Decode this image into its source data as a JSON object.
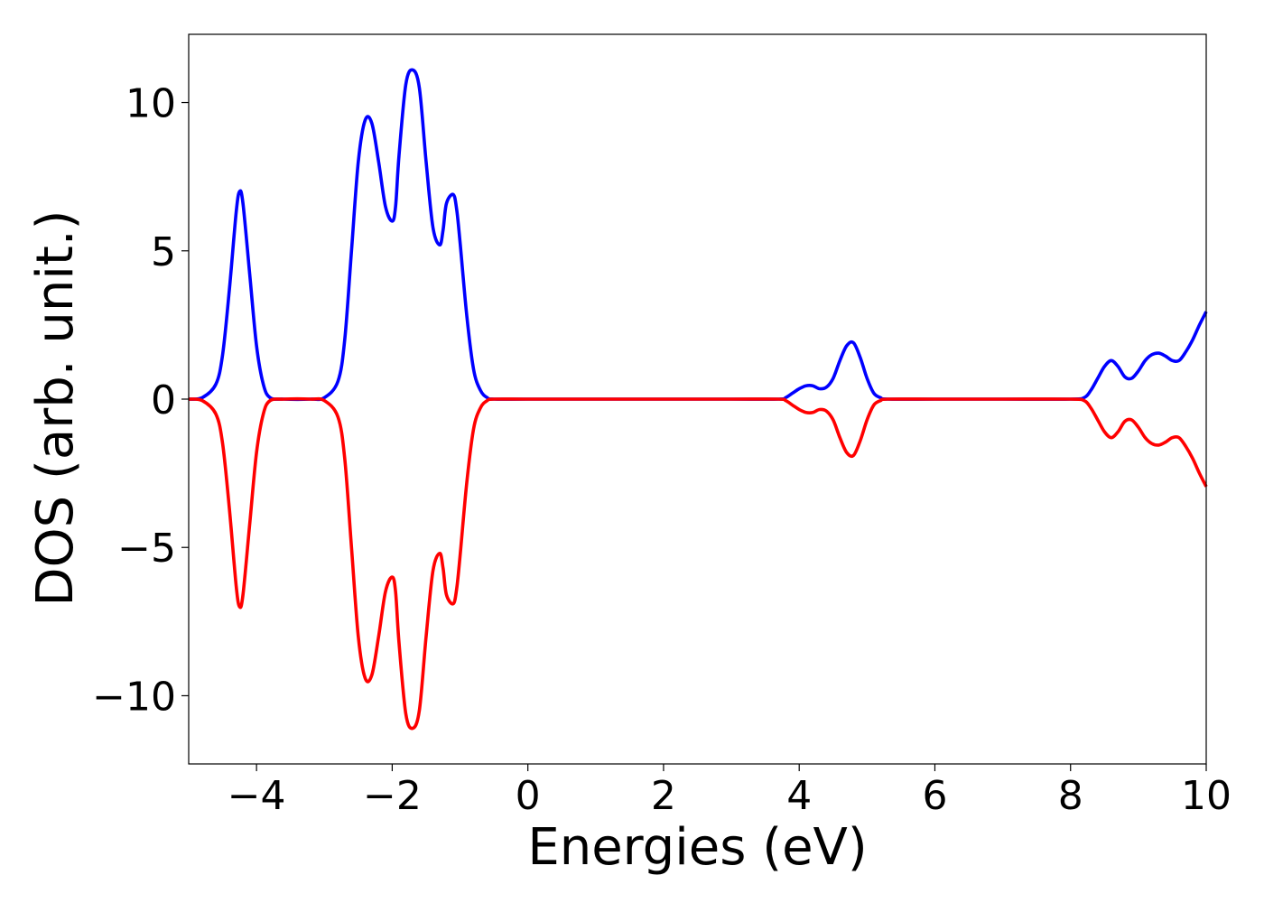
{
  "chart_data": {
    "type": "line",
    "xlabel": "Energies (eV)",
    "ylabel": "DOS (arb. unit.)",
    "xlim": [
      -5,
      10
    ],
    "ylim": [
      -12.3,
      12.3
    ],
    "grid": false,
    "x_ticks": [
      {
        "value": -4,
        "label": "−4"
      },
      {
        "value": -2,
        "label": "−2"
      },
      {
        "value": 0,
        "label": "0"
      },
      {
        "value": 2,
        "label": "2"
      },
      {
        "value": 4,
        "label": "4"
      },
      {
        "value": 6,
        "label": "6"
      },
      {
        "value": 8,
        "label": "8"
      },
      {
        "value": 10,
        "label": "10"
      }
    ],
    "y_ticks": [
      {
        "value": 10,
        "label": "10"
      },
      {
        "value": 5,
        "label": "5"
      },
      {
        "value": 0,
        "label": "0"
      },
      {
        "value": -5,
        "label": "−5"
      },
      {
        "value": -10,
        "label": "−10"
      }
    ],
    "series": [
      {
        "color": "#0000ff",
        "x": [
          -5.0,
          -4.8,
          -4.6,
          -4.5,
          -4.4,
          -4.3,
          -4.25,
          -4.2,
          -4.1,
          -4.0,
          -3.9,
          -3.8,
          -3.6,
          -3.2,
          -3.0,
          -2.8,
          -2.7,
          -2.6,
          -2.5,
          -2.4,
          -2.3,
          -2.2,
          -2.1,
          -2.0,
          -1.95,
          -1.9,
          -1.8,
          -1.7,
          -1.6,
          -1.5,
          -1.4,
          -1.3,
          -1.25,
          -1.2,
          -1.1,
          -1.05,
          -1.0,
          -0.9,
          -0.8,
          -0.7,
          -0.6,
          -0.5,
          0.0,
          1.0,
          2.0,
          3.0,
          3.7,
          3.8,
          3.9,
          4.0,
          4.1,
          4.2,
          4.3,
          4.4,
          4.5,
          4.6,
          4.7,
          4.8,
          4.9,
          5.0,
          5.1,
          5.2,
          5.3,
          6.0,
          7.0,
          8.0,
          8.2,
          8.3,
          8.4,
          8.5,
          8.6,
          8.7,
          8.8,
          8.9,
          9.0,
          9.1,
          9.2,
          9.3,
          9.4,
          9.5,
          9.6,
          9.7,
          9.8,
          9.9,
          10.0
        ],
        "y": [
          0.0,
          0.05,
          0.5,
          1.5,
          3.7,
          6.3,
          7.0,
          6.6,
          4.2,
          1.8,
          0.5,
          0.05,
          0.0,
          0.0,
          0.05,
          0.6,
          2.0,
          5.0,
          8.0,
          9.4,
          9.3,
          8.0,
          6.5,
          6.0,
          6.5,
          8.2,
          10.6,
          11.1,
          10.5,
          8.0,
          5.8,
          5.2,
          5.7,
          6.6,
          6.9,
          6.4,
          5.3,
          2.8,
          1.0,
          0.3,
          0.05,
          0.0,
          0.0,
          0.0,
          0.0,
          0.0,
          0.0,
          0.05,
          0.2,
          0.35,
          0.45,
          0.45,
          0.35,
          0.4,
          0.7,
          1.3,
          1.8,
          1.9,
          1.4,
          0.7,
          0.2,
          0.05,
          0.0,
          0.0,
          0.0,
          0.0,
          0.05,
          0.3,
          0.7,
          1.1,
          1.3,
          1.1,
          0.75,
          0.7,
          0.95,
          1.3,
          1.5,
          1.55,
          1.45,
          1.3,
          1.3,
          1.6,
          2.0,
          2.5,
          2.95
        ]
      },
      {
        "color": "#ff0000",
        "x": [
          -5.0,
          -4.8,
          -4.6,
          -4.5,
          -4.4,
          -4.3,
          -4.25,
          -4.2,
          -4.1,
          -4.0,
          -3.9,
          -3.8,
          -3.6,
          -3.2,
          -3.0,
          -2.8,
          -2.7,
          -2.6,
          -2.5,
          -2.4,
          -2.3,
          -2.2,
          -2.1,
          -2.0,
          -1.95,
          -1.9,
          -1.8,
          -1.7,
          -1.6,
          -1.5,
          -1.4,
          -1.3,
          -1.25,
          -1.2,
          -1.1,
          -1.05,
          -1.0,
          -0.9,
          -0.8,
          -0.7,
          -0.6,
          -0.5,
          0.0,
          1.0,
          2.0,
          3.0,
          3.7,
          3.8,
          3.9,
          4.0,
          4.1,
          4.2,
          4.3,
          4.4,
          4.5,
          4.6,
          4.7,
          4.8,
          4.9,
          5.0,
          5.1,
          5.2,
          5.3,
          6.0,
          7.0,
          8.0,
          8.2,
          8.3,
          8.4,
          8.5,
          8.6,
          8.7,
          8.8,
          8.9,
          9.0,
          9.1,
          9.2,
          9.3,
          9.4,
          9.5,
          9.6,
          9.7,
          9.8,
          9.9,
          10.0
        ],
        "y": [
          0.0,
          -0.05,
          -0.5,
          -1.5,
          -3.7,
          -6.3,
          -7.0,
          -6.6,
          -4.2,
          -1.8,
          -0.5,
          -0.05,
          0.0,
          0.0,
          -0.05,
          -0.6,
          -2.0,
          -5.0,
          -8.0,
          -9.4,
          -9.3,
          -8.0,
          -6.5,
          -6.0,
          -6.5,
          -8.2,
          -10.6,
          -11.1,
          -10.5,
          -8.0,
          -5.8,
          -5.2,
          -5.7,
          -6.6,
          -6.9,
          -6.4,
          -5.3,
          -2.8,
          -1.0,
          -0.3,
          -0.05,
          0.0,
          0.0,
          0.0,
          0.0,
          0.0,
          0.0,
          -0.05,
          -0.2,
          -0.35,
          -0.45,
          -0.45,
          -0.35,
          -0.4,
          -0.7,
          -1.3,
          -1.8,
          -1.9,
          -1.4,
          -0.7,
          -0.2,
          -0.05,
          0.0,
          0.0,
          0.0,
          0.0,
          -0.05,
          -0.3,
          -0.7,
          -1.1,
          -1.3,
          -1.1,
          -0.75,
          -0.7,
          -0.95,
          -1.3,
          -1.5,
          -1.55,
          -1.45,
          -1.3,
          -1.3,
          -1.6,
          -2.0,
          -2.5,
          -2.95
        ]
      }
    ]
  }
}
